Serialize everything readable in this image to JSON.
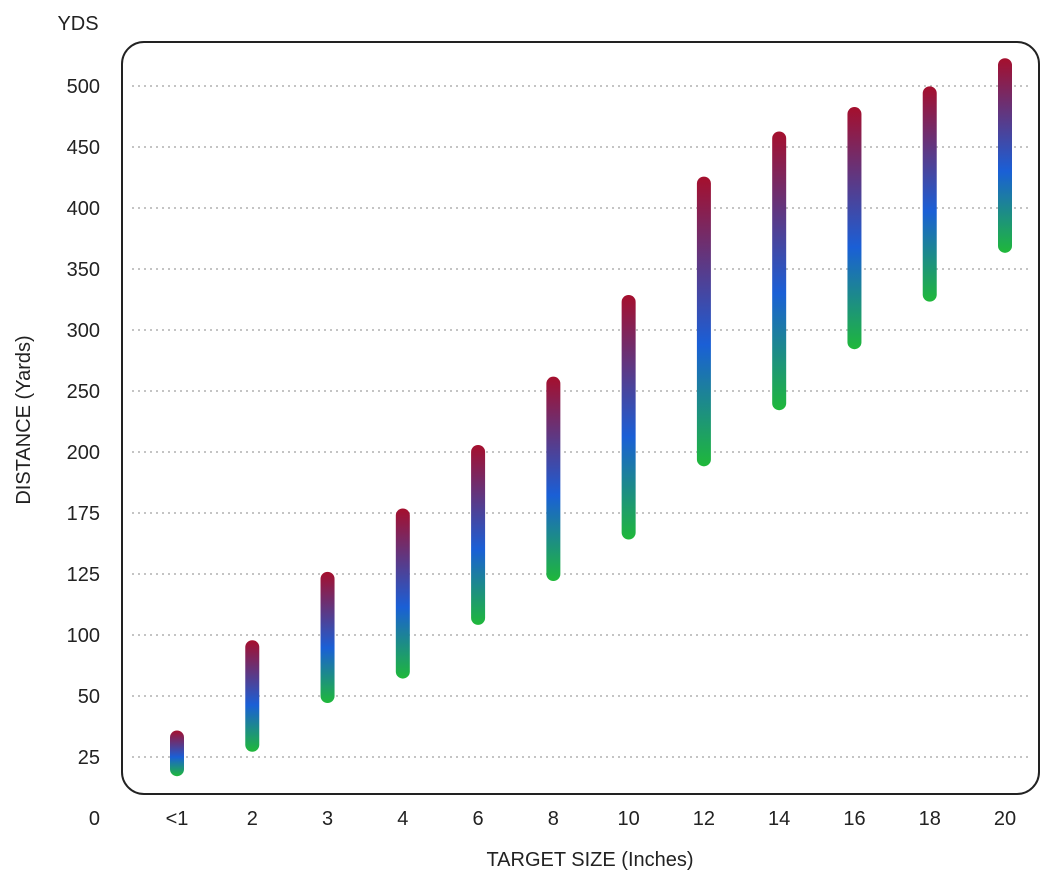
{
  "chart_data": {
    "type": "range-bar",
    "unit_label": "YDS",
    "xlabel": "TARGET SIZE (Inches)",
    "ylabel": "DISTANCE (Yards)",
    "categories": [
      "<1",
      "2",
      "3",
      "4",
      "6",
      "8",
      "10",
      "12",
      "14",
      "16",
      "18",
      "20"
    ],
    "ranges": [
      {
        "low": 20,
        "high": 33
      },
      {
        "low": 30,
        "high": 90
      },
      {
        "low": 50,
        "high": 123
      },
      {
        "low": 70,
        "high": 173
      },
      {
        "low": 107,
        "high": 200
      },
      {
        "low": 125,
        "high": 256
      },
      {
        "low": 159,
        "high": 323
      },
      {
        "low": 197,
        "high": 420
      },
      {
        "low": 240,
        "high": 457
      },
      {
        "low": 290,
        "high": 477
      },
      {
        "low": 329,
        "high": 494
      },
      {
        "low": 369,
        "high": 517
      }
    ],
    "y_ticks": [
      "0",
      "25",
      "50",
      "100",
      "125",
      "175",
      "200",
      "250",
      "300",
      "350",
      "400",
      "450",
      "500"
    ],
    "y_tick_values": [
      0,
      25,
      50,
      100,
      125,
      175,
      200,
      250,
      300,
      350,
      400,
      450,
      500
    ],
    "y_scale_note": "tick labels are evenly spaced",
    "grid": true,
    "grid_style": "dotted",
    "legend": "none",
    "colors": {
      "low": "#1fb83a",
      "mid": "#1a5fd6",
      "high": "#a50f2d",
      "grid": "#b0b0b0",
      "frame": "#222222"
    }
  }
}
